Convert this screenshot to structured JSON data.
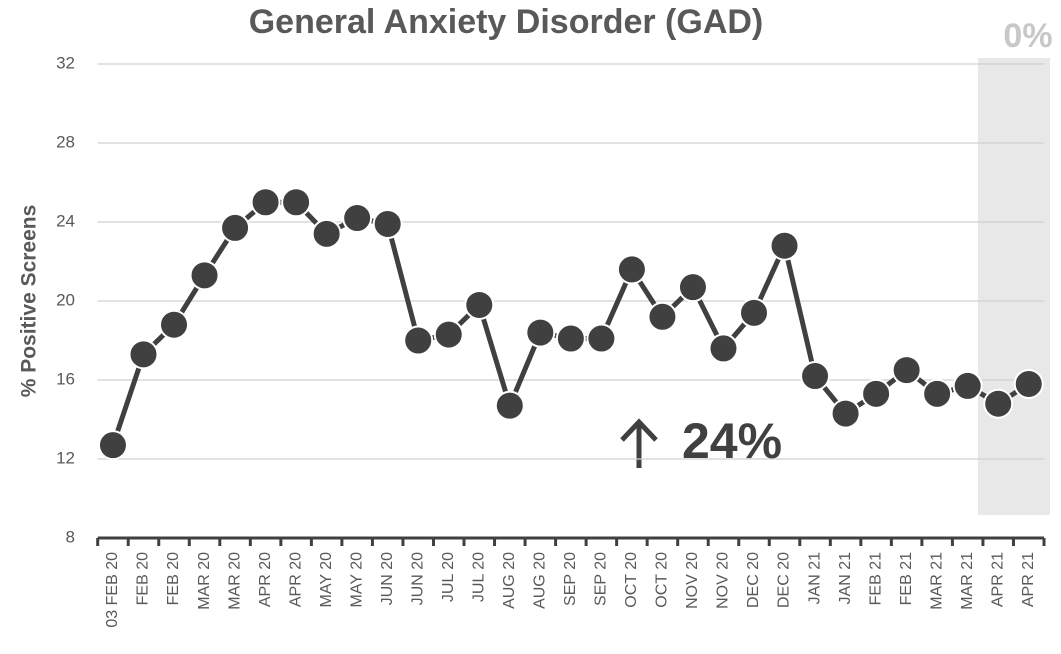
{
  "chart_data": {
    "type": "line",
    "title": "General Anxiety Disorder (GAD)",
    "y_label": "% Positive Screens",
    "annotations": [
      "24%",
      "0%"
    ],
    "categories": [
      "03 FEB 20",
      "FEB 20",
      "FEB 20",
      "MAR 20",
      "MAR 20",
      "APR 20",
      "APR 20",
      "MAY 20",
      "MAY 20",
      "JUN 20",
      "JUN 20",
      "JUL 20",
      "JUL 20",
      "AUG 20",
      "AUG 20",
      "SEP 20",
      "SEP 20",
      "OCT 20",
      "OCT 20",
      "NOV 20",
      "NOV 20",
      "DEC 20",
      "DEC 20",
      "JAN 21",
      "JAN 21",
      "FEB 21",
      "FEB 21",
      "MAR 21",
      "MAR 21",
      "APR 21",
      "APR 21"
    ],
    "series": [
      {
        "name": "GAD",
        "color": "#404040",
        "values": [
          12.7,
          17.3,
          18.8,
          21.3,
          23.7,
          25.0,
          25.0,
          23.4,
          24.2,
          23.9,
          18.0,
          18.3,
          19.8,
          14.7,
          18.4,
          18.1,
          18.1,
          21.6,
          19.2,
          20.7,
          17.6,
          19.4,
          22.8,
          16.2,
          14.3,
          15.3,
          16.5,
          15.3,
          15.7,
          14.8,
          15.8
        ]
      }
    ],
    "ylim": [
      8,
      32
    ],
    "yticks": [
      8,
      12,
      16,
      20,
      24,
      28,
      32
    ],
    "grid": true
  }
}
